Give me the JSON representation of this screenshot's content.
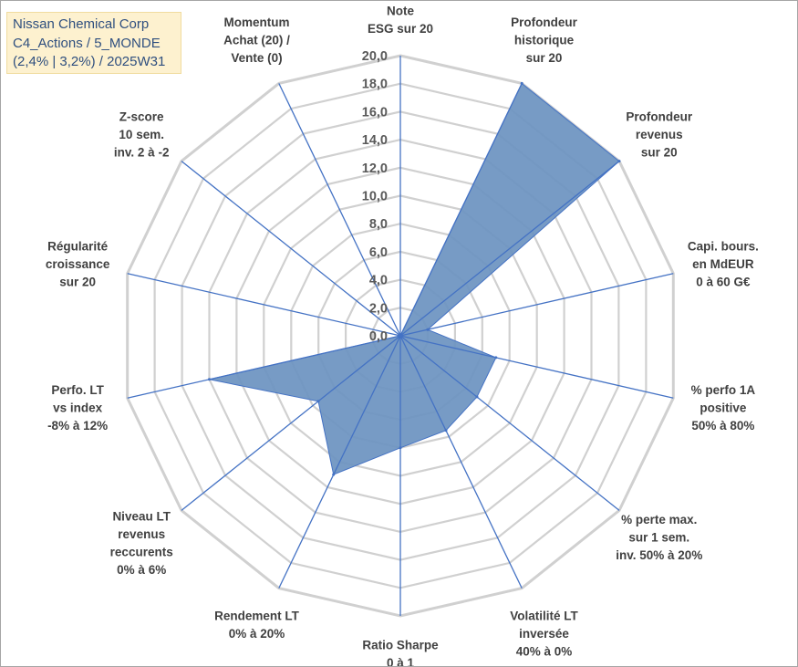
{
  "title": {
    "lines": [
      "Nissan Chemical Corp",
      "C4_Actions / 5_MONDE",
      "(2,4% | 3,2%) / 2025W31"
    ]
  },
  "chart_data": {
    "type": "radar",
    "r_min": 0,
    "r_max": 20,
    "r_step": 2,
    "tick_labels": [
      "0,0",
      "2,0",
      "4,0",
      "6,0",
      "8,0",
      "10,0",
      "12,0",
      "14,0",
      "16,0",
      "18,0",
      "20,0"
    ],
    "grid": true,
    "fill_color": "#6b93c0",
    "line_color": "#4472c4",
    "grid_color": "#d0d0d0",
    "axes": [
      {
        "label": [
          "Note",
          "ESG sur 20"
        ],
        "value": 0
      },
      {
        "label": [
          "Profondeur",
          "historique",
          "sur 20"
        ],
        "value": 20
      },
      {
        "label": [
          "Profondeur",
          "revenus",
          "sur 20"
        ],
        "value": 20
      },
      {
        "label": [
          "Capi. bours.",
          "en MdEUR",
          "0 à 60 G€"
        ],
        "value": 2
      },
      {
        "label": [
          "% perfo 1A",
          "positive",
          "50% à 80%"
        ],
        "value": 7
      },
      {
        "label": [
          "% perte max.",
          "sur 1 sem.",
          "inv. 50% à 20%"
        ],
        "value": 7
      },
      {
        "label": [
          "Volatilité LT",
          "inversée",
          "40% à 0%"
        ],
        "value": 7.5
      },
      {
        "label": [
          "Ratio Sharpe",
          "0 à 1"
        ],
        "value": 8
      },
      {
        "label": [
          "Rendement LT",
          "0% à 20%"
        ],
        "value": 11
      },
      {
        "label": [
          "Niveau LT",
          "revenus",
          "reccurents",
          "0% à 6%"
        ],
        "value": 7.5
      },
      {
        "label": [
          "Perfo. LT",
          "vs index",
          "-8% à 12%"
        ],
        "value": 14
      },
      {
        "label": [
          "Régularité",
          "croissance",
          "sur 20"
        ],
        "value": 0
      },
      {
        "label": [
          "Z-score",
          "10 sem.",
          "inv. 2 à -2"
        ],
        "value": 0
      },
      {
        "label": [
          "Momentum",
          "Achat (20) /",
          "Vente (0)"
        ],
        "value": 0
      }
    ]
  }
}
